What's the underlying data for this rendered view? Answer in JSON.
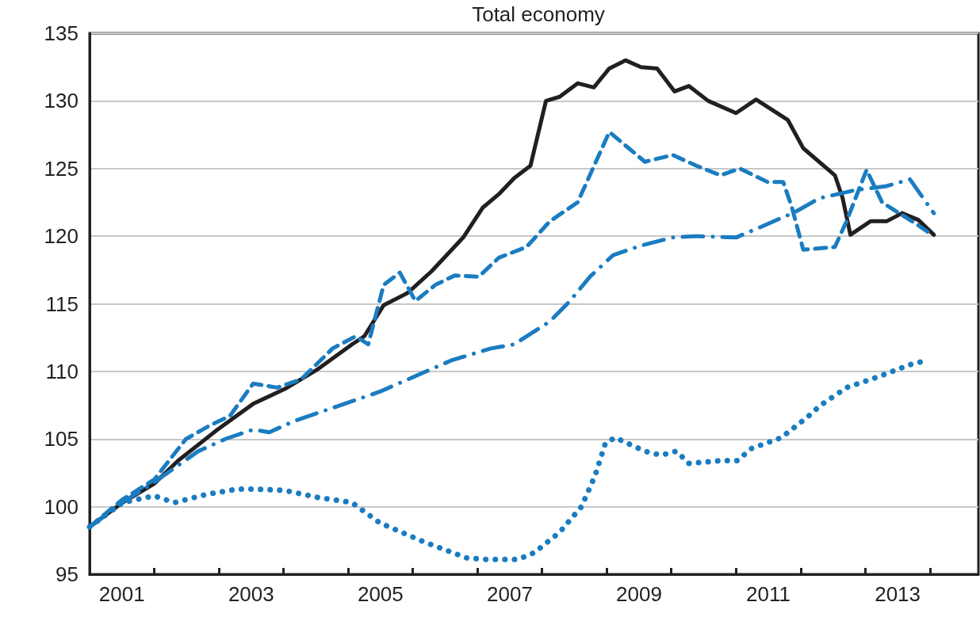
{
  "chart_data": {
    "type": "line",
    "title": "Total economy",
    "xlim": [
      2001,
      2014.75
    ],
    "xticks": [
      {
        "value": 2001.5,
        "label": "2001"
      },
      {
        "value": 2002,
        "label": null
      },
      {
        "value": 2003,
        "label": null
      },
      {
        "value": 2003.5,
        "label": "2003"
      },
      {
        "value": 2004,
        "label": null
      },
      {
        "value": 2005,
        "label": null
      },
      {
        "value": 2005.5,
        "label": "2005"
      },
      {
        "value": 2006,
        "label": null
      },
      {
        "value": 2007,
        "label": null
      },
      {
        "value": 2007.5,
        "label": "2007"
      },
      {
        "value": 2008,
        "label": null
      },
      {
        "value": 2009,
        "label": null
      },
      {
        "value": 2009.5,
        "label": "2009"
      },
      {
        "value": 2010,
        "label": null
      },
      {
        "value": 2011,
        "label": null
      },
      {
        "value": 2011.5,
        "label": "2011"
      },
      {
        "value": 2012,
        "label": null
      },
      {
        "value": 2013,
        "label": null
      },
      {
        "value": 2013.5,
        "label": "2013"
      },
      {
        "value": 2014,
        "label": null
      }
    ],
    "ylim": [
      95,
      135
    ],
    "yticks": [
      95,
      100,
      105,
      110,
      115,
      120,
      125,
      130,
      135
    ],
    "grid": "y",
    "marker": "none",
    "series": [
      {
        "color": "#231f20",
        "line_style": "solid",
        "x": [
          2001.0,
          2001.51,
          2002.0,
          2002.37,
          2002.98,
          2003.53,
          2004.02,
          2004.51,
          2005.06,
          2005.25,
          2005.55,
          2005.92,
          2006.29,
          2006.78,
          2007.08,
          2007.33,
          2007.57,
          2007.82,
          2008.06,
          2008.27,
          2008.55,
          2008.8,
          2009.04,
          2009.29,
          2009.53,
          2009.78,
          2010.05,
          2010.27,
          2010.57,
          2011.0,
          2011.31,
          2011.8,
          2012.04,
          2012.53,
          2012.65,
          2012.77,
          2013.08,
          2013.33,
          2013.57,
          2013.82,
          2014.06
        ],
        "values": [
          98.5,
          100.3,
          101.7,
          103.4,
          105.7,
          107.6,
          108.7,
          110.1,
          112.0,
          112.6,
          114.9,
          115.8,
          117.4,
          119.9,
          122.1,
          123.1,
          124.3,
          125.2,
          130.0,
          130.3,
          131.3,
          131.0,
          132.4,
          133.0,
          132.5,
          132.4,
          130.7,
          131.1,
          130.0,
          129.1,
          130.1,
          128.6,
          126.5,
          124.5,
          122.8,
          120.1,
          121.1,
          121.1,
          121.7,
          121.2,
          120.1
        ]
      },
      {
        "color": "#1a7cc1",
        "line_style": "dashed",
        "x": [
          2001.0,
          2001.5,
          2002.0,
          2002.49,
          2002.86,
          2003.17,
          2003.53,
          2003.9,
          2004.27,
          2004.76,
          2005.12,
          2005.31,
          2005.55,
          2005.8,
          2006.04,
          2006.35,
          2006.65,
          2007.02,
          2007.33,
          2007.76,
          2008.12,
          2008.55,
          2009.04,
          2009.59,
          2010.02,
          2010.39,
          2010.76,
          2011.06,
          2011.49,
          2011.73,
          2011.86,
          2012.04,
          2012.53,
          2012.71,
          2013.02,
          2013.26,
          2013.82,
          2014.0
        ],
        "values": [
          98.5,
          100.5,
          102.0,
          105.0,
          106.0,
          106.7,
          109.1,
          108.8,
          109.4,
          111.7,
          112.6,
          112.0,
          116.4,
          117.3,
          115.2,
          116.4,
          117.1,
          117.0,
          118.4,
          119.2,
          121.1,
          122.5,
          127.7,
          125.5,
          126.0,
          125.2,
          124.5,
          125.0,
          124.0,
          124.0,
          122.2,
          119.0,
          119.2,
          121.1,
          124.9,
          122.5,
          120.8,
          120.2
        ]
      },
      {
        "color": "#1a7cc1",
        "line_style": "dashdot",
        "x": [
          2001.0,
          2001.5,
          2002.0,
          2002.68,
          2003.1,
          2003.53,
          2003.78,
          2004.15,
          2005.49,
          2005.92,
          2006.59,
          2007.21,
          2007.57,
          2008.12,
          2008.43,
          2008.74,
          2009.1,
          2009.53,
          2010.02,
          2010.39,
          2011.0,
          2011.49,
          2011.92,
          2012.29,
          2012.84,
          2013.33,
          2013.69,
          2014.06
        ],
        "values": [
          98.5,
          100.3,
          101.8,
          104.1,
          105.0,
          105.7,
          105.5,
          106.3,
          108.5,
          109.4,
          110.8,
          111.7,
          112.0,
          113.7,
          115.2,
          117.0,
          118.6,
          119.3,
          119.9,
          120.0,
          119.9,
          120.9,
          121.8,
          122.8,
          123.4,
          123.7,
          124.2,
          121.7
        ]
      },
      {
        "color": "#1a7cc1",
        "line_style": "dotted",
        "x": [
          2001.0,
          2001.51,
          2002.0,
          2002.31,
          2002.8,
          2003.29,
          2003.53,
          2004.02,
          2004.51,
          2005.06,
          2005.49,
          2006.17,
          2006.84,
          2007.14,
          2007.63,
          2007.88,
          2008.27,
          2008.61,
          2008.82,
          2008.98,
          2009.13,
          2009.59,
          2009.84,
          2010.08,
          2010.27,
          2010.76,
          2011.02,
          2011.24,
          2011.7,
          2012.1,
          2012.31,
          2012.71,
          2013.2,
          2013.69,
          2013.94
        ],
        "values": [
          98.5,
          100.3,
          100.8,
          100.3,
          100.9,
          101.3,
          101.3,
          101.2,
          100.7,
          100.3,
          98.8,
          97.4,
          96.2,
          96.1,
          96.1,
          96.6,
          98.1,
          100.0,
          102.3,
          104.7,
          105.1,
          104.1,
          103.8,
          104.1,
          103.2,
          103.4,
          103.4,
          104.3,
          105.1,
          106.6,
          107.5,
          108.8,
          109.6,
          110.5,
          110.8
        ]
      }
    ]
  }
}
